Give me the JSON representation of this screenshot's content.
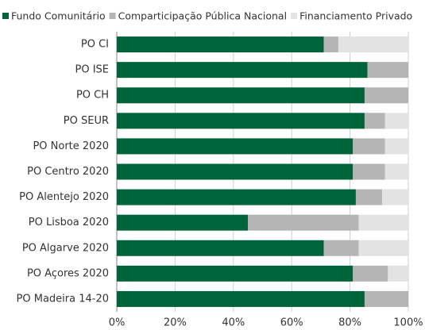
{
  "chart_data": {
    "type": "stacked-bar-horizontal",
    "categories": [
      "PO CI",
      "PO ISE",
      "PO CH",
      "PO SEUR",
      "PO Norte 2020",
      "PO Centro 2020",
      "PO Alentejo 2020",
      "PO Lisboa 2020",
      "PO Algarve 2020",
      "PO Açores 2020",
      "PO Madeira 14-20"
    ],
    "series": [
      {
        "name": "Fundo Comunitário",
        "color": "#00643a",
        "values": [
          71,
          86,
          85,
          85,
          81,
          81,
          82,
          45,
          71,
          81,
          85
        ]
      },
      {
        "name": "Comparticipação Pública Nacional",
        "color": "#b5b5b5",
        "values": [
          5,
          14,
          15,
          7,
          11,
          11,
          9,
          38,
          12,
          12,
          15
        ]
      },
      {
        "name": "Financiamento Privado",
        "color": "#e3e3e3",
        "values": [
          24,
          0,
          0,
          8,
          8,
          8,
          9,
          17,
          17,
          7,
          0
        ]
      }
    ],
    "xlim": [
      0,
      100
    ],
    "xticks": [
      {
        "value": 0,
        "label": "0%"
      },
      {
        "value": 20,
        "label": "20%"
      },
      {
        "value": 40,
        "label": "40%"
      },
      {
        "value": 60,
        "label": "60%"
      },
      {
        "value": 80,
        "label": "80%"
      },
      {
        "value": 100,
        "label": "100%"
      }
    ],
    "grid": true,
    "legend": "top"
  }
}
